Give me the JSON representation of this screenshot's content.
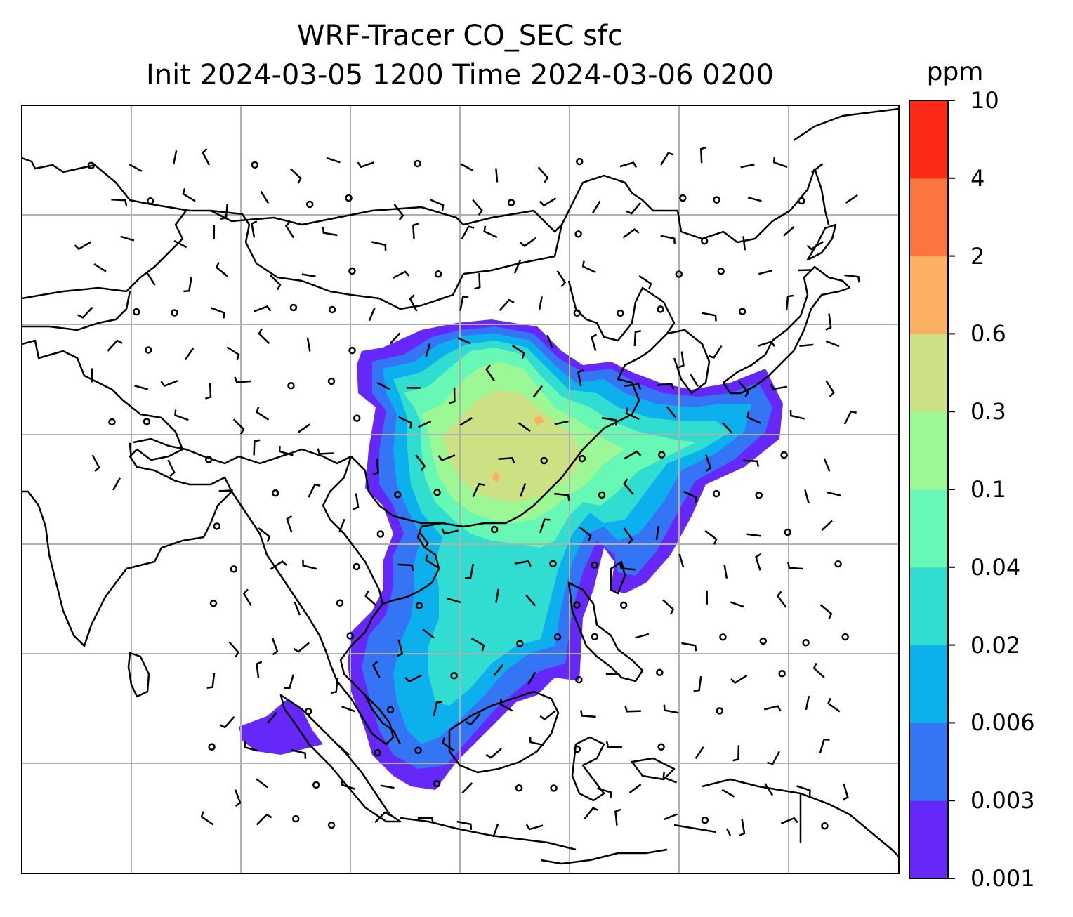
{
  "title": {
    "line1": "WRF-Tracer CO_SEC sfc",
    "line2": "Init 2024-03-05 1200 Time 2024-03-06 0200"
  },
  "colorbar": {
    "unit": "ppm",
    "levels": [
      "0.001",
      "0.003",
      "0.006",
      "0.02",
      "0.04",
      "0.1",
      "0.3",
      "0.6",
      "2",
      "4",
      "10"
    ],
    "colors": [
      "#6528f8",
      "#3375f4",
      "#0cb0ec",
      "#31dcd1",
      "#67f8b5",
      "#9cf795",
      "#cbe183",
      "#fcb062",
      "#fc7440",
      "#fc2a17"
    ]
  },
  "colors": {
    "grid": "#b0b0b0",
    "coast": "#000000"
  }
}
